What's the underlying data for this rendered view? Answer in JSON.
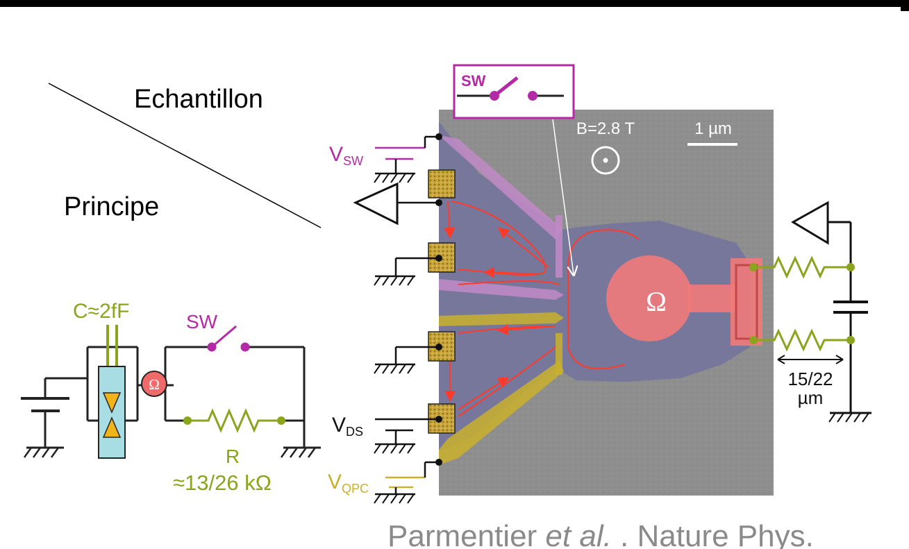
{
  "header": {
    "corner_label": "Echantillon",
    "row_label": "Principe"
  },
  "schematic": {
    "capacitor_label": "C≈2fF",
    "switch_label": "SW",
    "resistor_label": "R",
    "resistance_value": "≈13/26 kΩ",
    "ohmic_symbol": "Ω"
  },
  "sample": {
    "field_label": "B=2.8 T",
    "scale_label": "1 µm",
    "ohmic_symbol": "Ω",
    "switch_inset_label": "SW",
    "source_sw": {
      "main": "V",
      "sub": "SW"
    },
    "source_ds": {
      "main": "V",
      "sub": "DS"
    },
    "source_qpc": {
      "main": "V",
      "sub": "QPC"
    },
    "length_label_top": "15/22",
    "length_label_bottom": "µm"
  },
  "citation": {
    "authors": "Parmentier ",
    "etal": "et al.",
    "journal": " . Nature Phys."
  },
  "colors": {
    "switch": "#b42aa6",
    "rlc": "#8aa41d",
    "gate_yellow": "#c9b02d",
    "edge_state": "#ff3a2a",
    "island": "#f07a7a",
    "substrate": "#8c8c8c",
    "mesa": "#6f6fa0"
  }
}
